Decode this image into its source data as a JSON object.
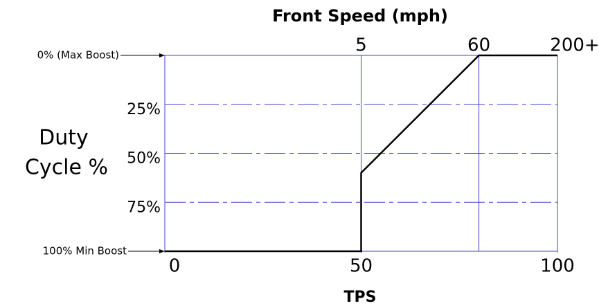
{
  "chart_data": {
    "type": "line",
    "title": "Front Speed (mph)",
    "xlabel": "TPS",
    "ylabel": [
      "Duty",
      "Cycle %"
    ],
    "x": [
      0,
      50,
      50,
      80,
      100
    ],
    "series": [
      {
        "color": "#000000",
        "values": [
          100,
          100,
          60,
          0,
          0
        ]
      }
    ],
    "xlim": [
      0,
      100
    ],
    "xticks": [
      0,
      50,
      100
    ],
    "x2ticks": [
      {
        "value": 50,
        "label": "5"
      },
      {
        "value": 80,
        "label": "60"
      },
      {
        "value": 100,
        "label": "200+"
      }
    ],
    "ylim": [
      100,
      0
    ],
    "yticks": [
      {
        "value": 0,
        "label": "0% (Max Boost)"
      },
      {
        "value": 25,
        "label": "25%"
      },
      {
        "value": 50,
        "label": "50%"
      },
      {
        "value": 75,
        "label": "75%"
      },
      {
        "value": 100,
        "label": "100% Min Boost"
      }
    ],
    "grid": true,
    "grid_color": "#4040d0"
  }
}
